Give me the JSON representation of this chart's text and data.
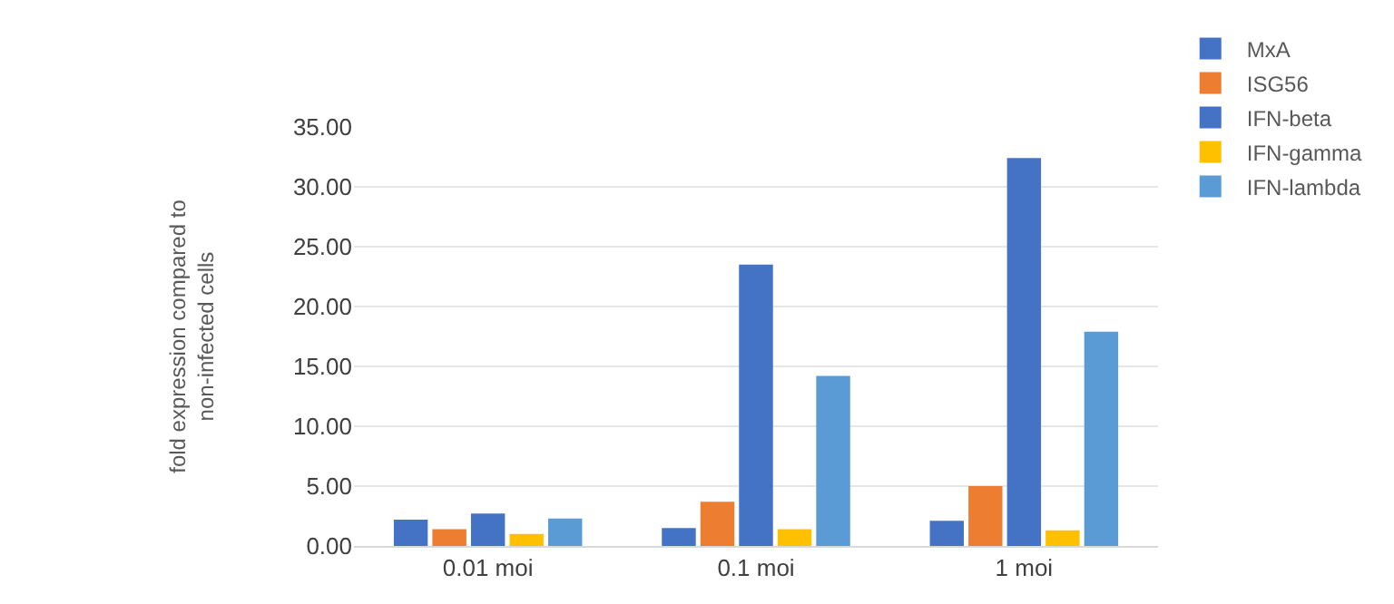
{
  "chart_data": {
    "type": "bar",
    "ylabel": "fold expression compared to non-infected cells",
    "categories": [
      "0.01 moi",
      "0.1 moi",
      "1 moi"
    ],
    "series": [
      {
        "name": "MxA",
        "color": "#4472c4",
        "values": [
          2.2,
          1.5,
          2.1
        ]
      },
      {
        "name": "ISG56",
        "color": "#ed7d31",
        "values": [
          1.4,
          3.7,
          5.0
        ]
      },
      {
        "name": "IFN-beta",
        "color": "#4472c4",
        "values": [
          2.7,
          23.5,
          32.4
        ]
      },
      {
        "name": "IFN-gamma",
        "color": "#ffc000",
        "values": [
          1.0,
          1.4,
          1.3
        ]
      },
      {
        "name": "IFN-lambda",
        "color": "#5b9bd5",
        "values": [
          2.3,
          14.2,
          17.9
        ]
      }
    ],
    "ylim": [
      0,
      35
    ],
    "yticks": [
      {
        "value": 0,
        "label": "0.00"
      },
      {
        "value": 5,
        "label": "5.00"
      },
      {
        "value": 10,
        "label": "10.00"
      },
      {
        "value": 15,
        "label": "15.00"
      },
      {
        "value": 20,
        "label": "20.00"
      },
      {
        "value": 25,
        "label": "25.00"
      },
      {
        "value": 30,
        "label": "30.00"
      },
      {
        "value": 35,
        "label": "35.00"
      }
    ],
    "grid": "y",
    "legend": "top right"
  }
}
